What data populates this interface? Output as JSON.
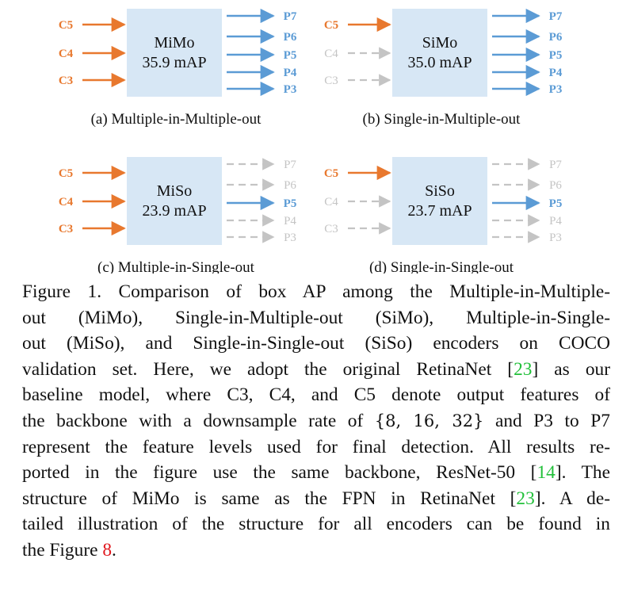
{
  "panels": [
    {
      "id": "mimo",
      "box_title": "MiMo",
      "box_value": "35.9 mAP",
      "sublabel": "(a) Multiple-in-Multiple-out",
      "inputs": [
        {
          "label": "C5",
          "active": true
        },
        {
          "label": "C4",
          "active": true
        },
        {
          "label": "C3",
          "active": true
        }
      ],
      "outputs": [
        {
          "label": "P7",
          "active": true
        },
        {
          "label": "P6",
          "active": true
        },
        {
          "label": "P5",
          "active": true
        },
        {
          "label": "P4",
          "active": true
        },
        {
          "label": "P3",
          "active": true
        }
      ]
    },
    {
      "id": "simo",
      "box_title": "SiMo",
      "box_value": "35.0 mAP",
      "sublabel": "(b) Single-in-Multiple-out",
      "inputs": [
        {
          "label": "C5",
          "active": true
        },
        {
          "label": "C4",
          "active": false
        },
        {
          "label": "C3",
          "active": false
        }
      ],
      "outputs": [
        {
          "label": "P7",
          "active": true
        },
        {
          "label": "P6",
          "active": true
        },
        {
          "label": "P5",
          "active": true
        },
        {
          "label": "P4",
          "active": true
        },
        {
          "label": "P3",
          "active": true
        }
      ]
    },
    {
      "id": "miso",
      "box_title": "MiSo",
      "box_value": "23.9 mAP",
      "sublabel": "(c) Multiple-in-Single-out",
      "inputs": [
        {
          "label": "C5",
          "active": true
        },
        {
          "label": "C4",
          "active": true
        },
        {
          "label": "C3",
          "active": true
        }
      ],
      "outputs": [
        {
          "label": "P7",
          "active": false
        },
        {
          "label": "P6",
          "active": false
        },
        {
          "label": "P5",
          "active": true
        },
        {
          "label": "P4",
          "active": false
        },
        {
          "label": "P3",
          "active": false
        }
      ]
    },
    {
      "id": "siso",
      "box_title": "SiSo",
      "box_value": "23.7 mAP",
      "sublabel": "(d) Single-in-Single-out",
      "inputs": [
        {
          "label": "C5",
          "active": true
        },
        {
          "label": "C4",
          "active": false
        },
        {
          "label": "C3",
          "active": false
        }
      ],
      "outputs": [
        {
          "label": "P7",
          "active": false
        },
        {
          "label": "P6",
          "active": false
        },
        {
          "label": "P5",
          "active": true
        },
        {
          "label": "P4",
          "active": false
        },
        {
          "label": "P3",
          "active": false
        }
      ]
    }
  ],
  "colors": {
    "input_active": "#e8782e",
    "output_active": "#5b9bd5",
    "inactive": "#c4c4c4",
    "box_fill": "#d7e7f5",
    "citation": "#22c03a",
    "figure_ref": "#e0151b"
  },
  "caption": {
    "l1": "Figure 1. Comparison of box AP among the Multiple-in-Multiple-",
    "l2": "out (MiMo), Single-in-Multiple-out (SiMo), Multiple-in-Single-",
    "l3": "out (MiSo), and Single-in-Single-out (SiSo) encoders on COCO",
    "l4_a": "validation set. Here, we adopt the original RetinaNet [",
    "cite_23": "23",
    "l4_b": "] as our",
    "l5": "baseline model, where C3, C4, and C5 denote output features of",
    "l6_a": "the backbone with a downsample rate of ",
    "l6_math": "{8, 16, 32}",
    "l6_b": " and P3 to P7",
    "l7": "represent the feature levels used for final detection. All results re-",
    "l8_a": "ported in the figure use the same backbone, ResNet-50 [",
    "cite_14": "14",
    "l8_b": "]. The",
    "l9_a": "structure of MiMo is same as the FPN in RetinaNet [",
    "l9_b": "]. A de-",
    "l10": "tailed illustration of the structure for all encoders can be found in",
    "l11_a": "the Figure ",
    "fig_ref": "8",
    "l11_b": "."
  }
}
